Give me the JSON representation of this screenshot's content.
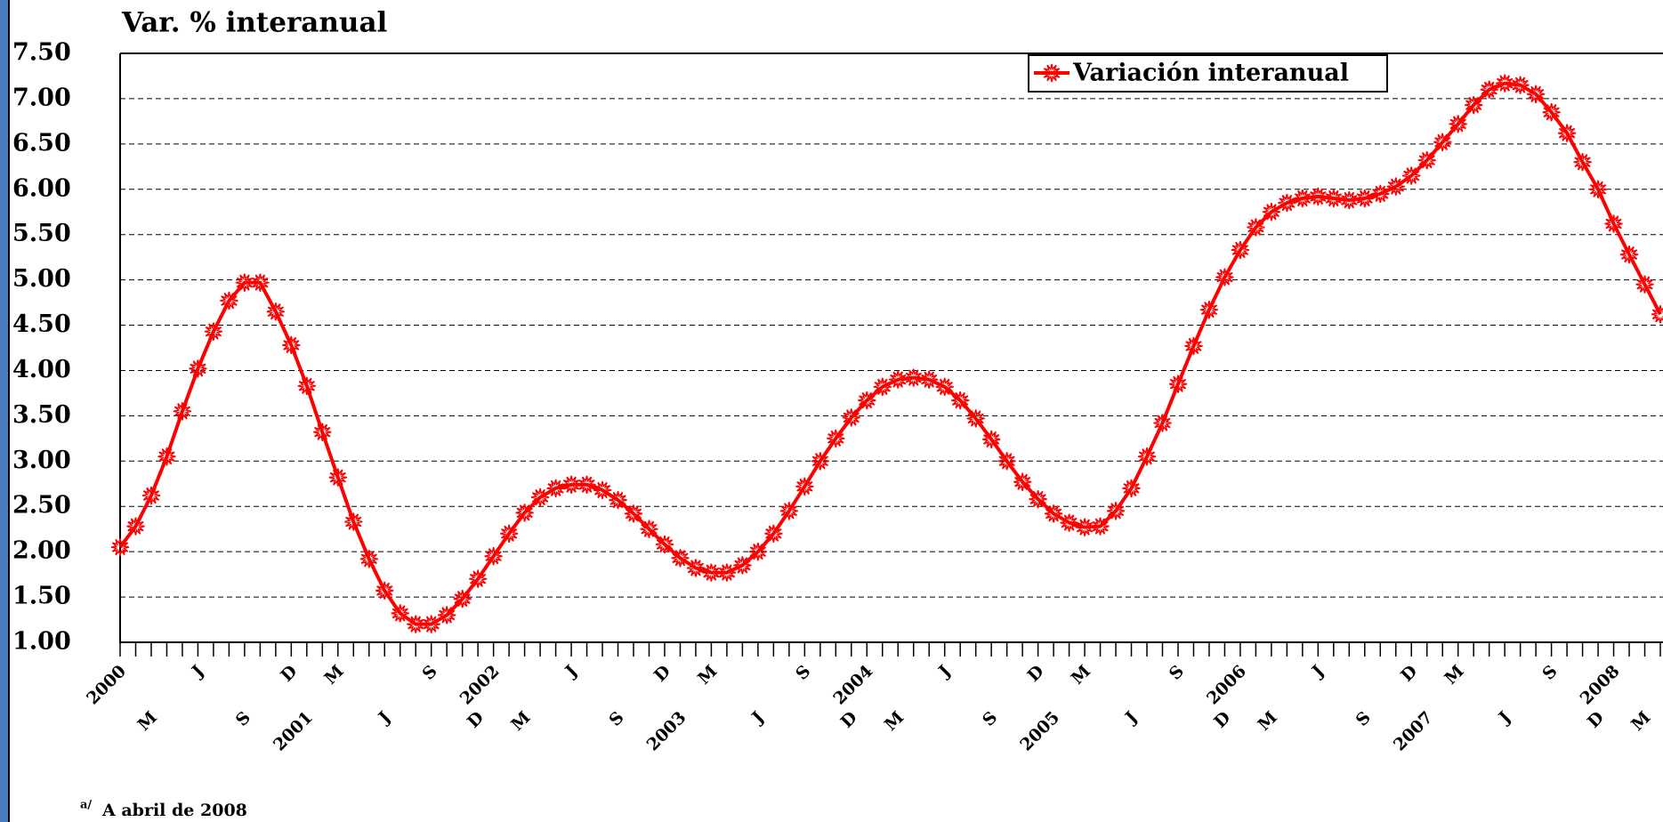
{
  "chart_data": {
    "type": "line",
    "title": "Var. % interanual",
    "footnote": {
      "marker": "a/",
      "text": "A abril de 2008"
    },
    "categories": [
      "2000",
      null,
      "M",
      null,
      null,
      "J",
      null,
      null,
      "S",
      null,
      null,
      "D",
      "2001",
      null,
      "M",
      null,
      null,
      "J",
      null,
      null,
      "S",
      null,
      null,
      "D",
      "2002",
      null,
      "M",
      null,
      null,
      "J",
      null,
      null,
      "S",
      null,
      null,
      "D",
      "2003",
      null,
      "M",
      null,
      null,
      "J",
      null,
      null,
      "S",
      null,
      null,
      "D",
      "2004",
      null,
      "M",
      null,
      null,
      "J",
      null,
      null,
      "S",
      null,
      null,
      "D",
      "2005",
      null,
      "M",
      null,
      null,
      "J",
      null,
      null,
      "S",
      null,
      null,
      "D",
      "2006",
      null,
      "M",
      null,
      null,
      "J",
      null,
      null,
      "S",
      null,
      null,
      "D",
      "2007",
      null,
      "M",
      null,
      null,
      "J",
      null,
      null,
      "S",
      null,
      null,
      "D",
      "2008",
      null,
      "M",
      null
    ],
    "series": [
      {
        "name": "Variación interanual",
        "color": "#ff0000",
        "values": [
          2.05,
          2.28,
          2.62,
          3.05,
          3.55,
          4.02,
          4.43,
          4.77,
          4.97,
          4.97,
          4.65,
          4.28,
          3.83,
          3.32,
          2.82,
          2.33,
          1.92,
          1.57,
          1.32,
          1.2,
          1.2,
          1.3,
          1.48,
          1.7,
          1.95,
          2.2,
          2.43,
          2.6,
          2.7,
          2.74,
          2.74,
          2.68,
          2.57,
          2.42,
          2.25,
          2.08,
          1.93,
          1.82,
          1.77,
          1.77,
          1.85,
          2.0,
          2.2,
          2.45,
          2.72,
          3.0,
          3.25,
          3.48,
          3.67,
          3.82,
          3.9,
          3.92,
          3.9,
          3.82,
          3.67,
          3.47,
          3.24,
          3.0,
          2.77,
          2.58,
          2.42,
          2.32,
          2.27,
          2.28,
          2.45,
          2.7,
          3.05,
          3.42,
          3.85,
          4.27,
          4.67,
          5.03,
          5.33,
          5.58,
          5.75,
          5.85,
          5.9,
          5.92,
          5.9,
          5.88,
          5.9,
          5.95,
          6.03,
          6.15,
          6.32,
          6.52,
          6.72,
          6.93,
          7.1,
          7.17,
          7.15,
          7.05,
          6.85,
          6.62,
          6.3,
          6.0,
          5.62,
          5.28,
          4.95,
          4.62
        ]
      }
    ],
    "ylim": [
      1,
      7.5
    ],
    "yticks": [
      {
        "value": 1,
        "label": "1.00"
      },
      {
        "value": 1.5,
        "label": "1.50"
      },
      {
        "value": 2,
        "label": "2.00"
      },
      {
        "value": 2.5,
        "label": "2.50"
      },
      {
        "value": 3,
        "label": "3.00"
      },
      {
        "value": 3.5,
        "label": "3.50"
      },
      {
        "value": 4,
        "label": "4.00"
      },
      {
        "value": 4.5,
        "label": "4.50"
      },
      {
        "value": 5,
        "label": "5.00"
      },
      {
        "value": 5.5,
        "label": "5.50"
      },
      {
        "value": 6,
        "label": "6.00"
      },
      {
        "value": 6.5,
        "label": "6.50"
      },
      {
        "value": 7,
        "label": "7.00"
      },
      {
        "value": 7.5,
        "label": "7.50"
      }
    ],
    "grid": true,
    "legend": "top-right"
  }
}
